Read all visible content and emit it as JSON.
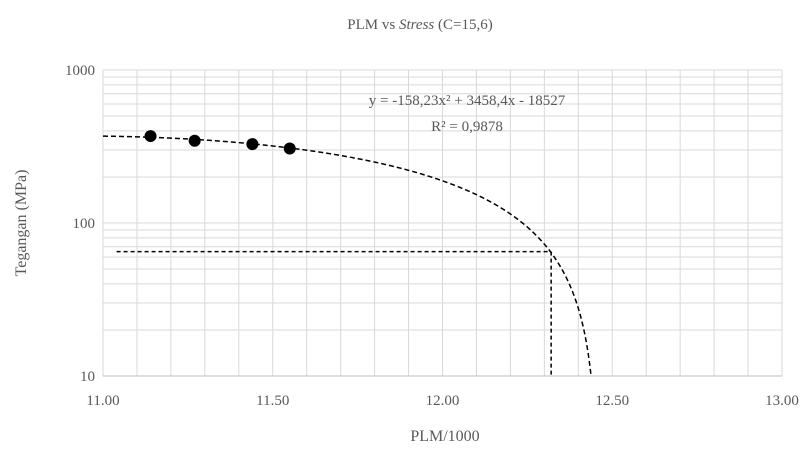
{
  "chart_data": {
    "type": "scatter",
    "title_prefix": "PLM vs ",
    "title_italic": "Stress",
    "title_suffix": " (C=15,6)",
    "xlabel": "PLM/1000",
    "ylabel": "Tegangan (MPa)",
    "xlim": [
      11.0,
      13.0
    ],
    "ylim": [
      10,
      1000
    ],
    "yscale": "log",
    "x_ticks": [
      "11.00",
      "11.50",
      "12.00",
      "12.50",
      "13.00"
    ],
    "y_ticks": [
      "10",
      "100",
      "1000"
    ],
    "grid": true,
    "series": [
      {
        "values": [
          {
            "x": 11.14,
            "y": 370
          },
          {
            "x": 11.27,
            "y": 345
          },
          {
            "x": 11.44,
            "y": 328
          },
          {
            "x": 11.55,
            "y": 307
          }
        ]
      }
    ],
    "trendline": {
      "type": "polynomial",
      "a": -158.23,
      "b": 3458.4,
      "c": -18527,
      "equation": "y = -158,23x² + 3458,4x - 18527",
      "r_squared": "R² = 0,9878"
    },
    "reference": {
      "x": 12.32,
      "y": 65
    },
    "colors": {
      "points": "#000000",
      "grid": "#d9d9d9",
      "axis": "#bfbfbf",
      "text": "#595959"
    }
  }
}
